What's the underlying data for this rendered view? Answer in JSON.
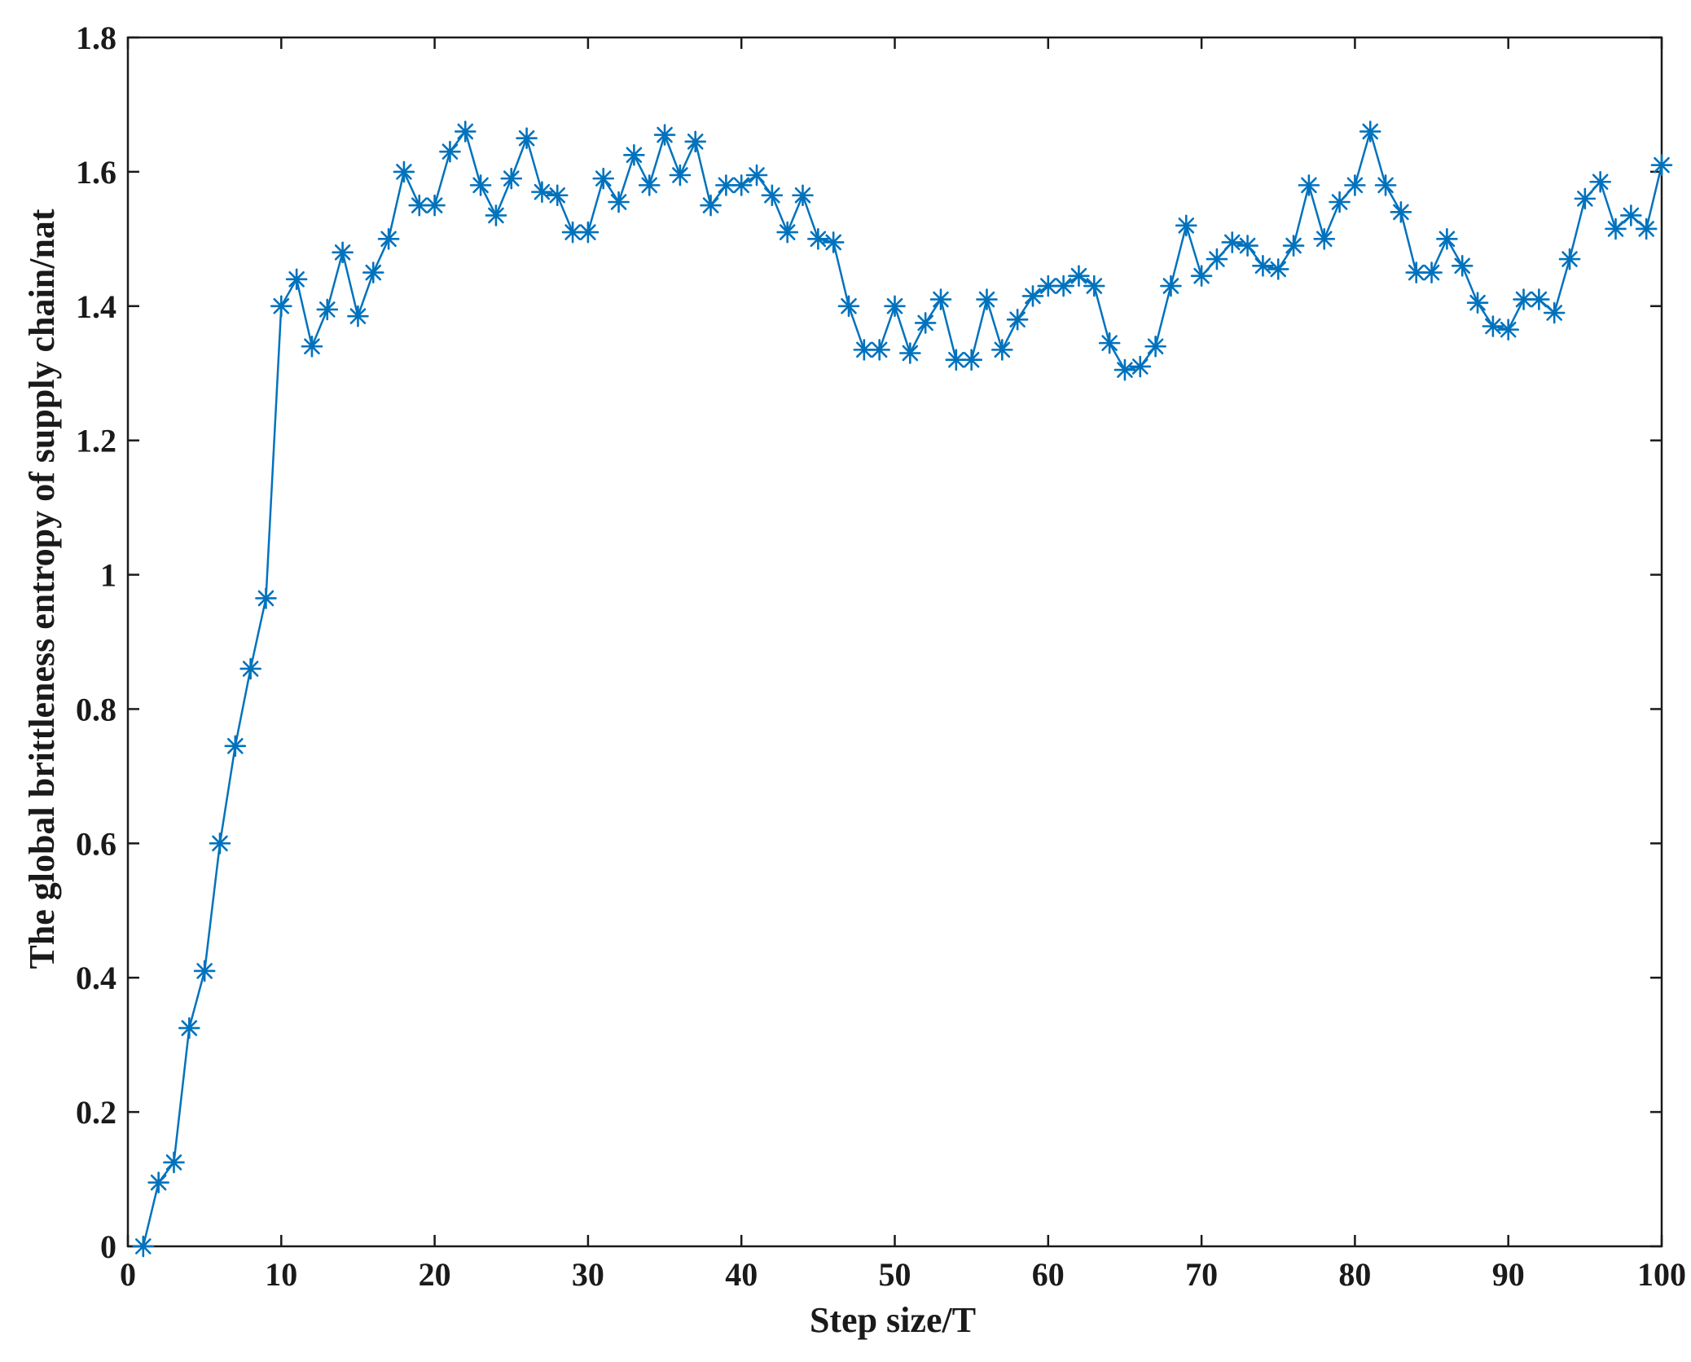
{
  "chart_data": {
    "type": "line",
    "title": "",
    "xlabel": "Step size/T",
    "ylabel": "The global brittleness entropy of supply chain/nat",
    "xlim": [
      0,
      100
    ],
    "ylim": [
      0,
      1.8
    ],
    "xticks": [
      0,
      10,
      20,
      30,
      40,
      50,
      60,
      70,
      80,
      90,
      100
    ],
    "yticks": [
      0,
      0.2,
      0.4,
      0.6,
      0.8,
      1,
      1.2,
      1.4,
      1.6,
      1.8
    ],
    "xtick_labels": [
      "0",
      "10",
      "20",
      "30",
      "40",
      "50",
      "60",
      "70",
      "80",
      "90",
      "100"
    ],
    "ytick_labels": [
      "0",
      "0.2",
      "0.4",
      "0.6",
      "0.8",
      "1",
      "1.2",
      "1.4",
      "1.6",
      "1.8"
    ],
    "grid": false,
    "marker": "asterisk",
    "colors": {
      "series": "#0072BD",
      "axis": "#1a1a1a"
    },
    "series": [
      {
        "x": [
          1,
          2,
          3,
          4,
          5,
          6,
          7,
          8,
          9,
          10,
          11,
          12,
          13,
          14,
          15,
          16,
          17,
          18,
          19,
          20,
          21,
          22,
          23,
          24,
          25,
          26,
          27,
          28,
          29,
          30,
          31,
          32,
          33,
          34,
          35,
          36,
          37,
          38,
          39,
          40,
          41,
          42,
          43,
          44,
          45,
          46,
          47,
          48,
          49,
          50,
          51,
          52,
          53,
          54,
          55,
          56,
          57,
          58,
          59,
          60,
          61,
          62,
          63,
          64,
          65,
          66,
          67,
          68,
          69,
          70,
          71,
          72,
          73,
          74,
          75,
          76,
          77,
          78,
          79,
          80,
          81,
          82,
          83,
          84,
          85,
          86,
          87,
          88,
          89,
          90,
          91,
          92,
          93,
          94,
          95,
          96,
          97,
          98,
          99,
          100
        ],
        "values": [
          0.0,
          0.095,
          0.125,
          0.325,
          0.41,
          0.6,
          0.745,
          0.86,
          0.965,
          1.4,
          1.44,
          1.34,
          1.395,
          1.48,
          1.385,
          1.45,
          1.5,
          1.6,
          1.55,
          1.55,
          1.63,
          1.66,
          1.58,
          1.535,
          1.59,
          1.65,
          1.57,
          1.565,
          1.51,
          1.51,
          1.59,
          1.555,
          1.625,
          1.58,
          1.655,
          1.595,
          1.645,
          1.55,
          1.58,
          1.58,
          1.595,
          1.565,
          1.51,
          1.565,
          1.5,
          1.495,
          1.4,
          1.335,
          1.335,
          1.4,
          1.33,
          1.375,
          1.41,
          1.32,
          1.32,
          1.41,
          1.335,
          1.38,
          1.415,
          1.43,
          1.43,
          1.445,
          1.43,
          1.345,
          1.305,
          1.31,
          1.34,
          1.43,
          1.52,
          1.445,
          1.47,
          1.495,
          1.49,
          1.46,
          1.455,
          1.49,
          1.58,
          1.5,
          1.555,
          1.58,
          1.66,
          1.58,
          1.54,
          1.45,
          1.45,
          1.5,
          1.46,
          1.405,
          1.37,
          1.365,
          1.41,
          1.41,
          1.39,
          1.47,
          1.56,
          1.585,
          1.515,
          1.535,
          1.515,
          1.61
        ]
      }
    ]
  }
}
